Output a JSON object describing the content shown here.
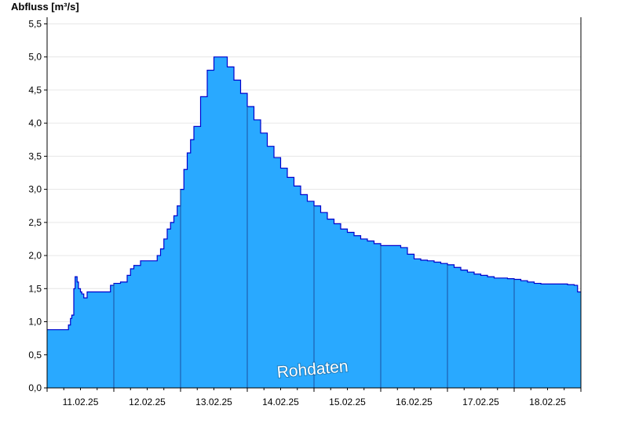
{
  "chart_data": {
    "type": "area",
    "ylabel": "Abfluss [m³/s]",
    "ylim": [
      0,
      5.6
    ],
    "yticks": [
      0,
      0.5,
      1.0,
      1.5,
      2.0,
      2.5,
      3.0,
      3.5,
      4.0,
      4.5,
      5.0,
      5.5
    ],
    "ytick_labels": [
      "0,0",
      "0,5",
      "1,0",
      "1,5",
      "2,0",
      "2,5",
      "3,0",
      "3,5",
      "4,0",
      "4,5",
      "5,0",
      "5,5"
    ],
    "xlim": [
      0,
      8
    ],
    "x_unit": "days from 11.02.25 00:00",
    "xtick_labels": [
      "11.02.25",
      "12.02.25",
      "13.02.25",
      "14.02.25",
      "15.02.25",
      "16.02.25",
      "17.02.25",
      "18.02.25"
    ],
    "grid": true,
    "annotation": "Rohdaten",
    "colors": {
      "fill": "#29a9ff",
      "line": "#0000cc",
      "grid": "#e6e6e6",
      "axis": "#000000"
    },
    "series": [
      {
        "x": [
          0,
          0.3,
          0.32,
          0.35,
          0.37,
          0.4,
          0.42,
          0.45,
          0.47,
          0.5,
          0.52,
          0.55,
          0.6,
          0.65,
          0.7,
          0.8,
          0.95,
          1.0,
          1.1,
          1.2,
          1.25,
          1.3,
          1.4,
          1.5,
          1.6,
          1.65,
          1.7,
          1.75,
          1.8,
          1.85,
          1.9,
          1.95,
          2.0,
          2.05,
          2.1,
          2.15,
          2.2,
          2.3,
          2.4,
          2.5,
          2.6,
          2.7,
          2.8,
          2.9,
          3.0,
          3.1,
          3.2,
          3.3,
          3.4,
          3.5,
          3.6,
          3.7,
          3.8,
          3.9,
          4.0,
          4.1,
          4.2,
          4.3,
          4.4,
          4.5,
          4.6,
          4.7,
          4.8,
          4.9,
          5.0,
          5.1,
          5.2,
          5.3,
          5.4,
          5.5,
          5.6,
          5.7,
          5.8,
          5.9,
          6.0,
          6.1,
          6.2,
          6.3,
          6.4,
          6.5,
          6.6,
          6.7,
          6.8,
          6.9,
          7.0,
          7.1,
          7.2,
          7.3,
          7.4,
          7.5,
          7.6,
          7.7,
          7.8,
          7.9,
          7.95,
          8.0
        ],
        "y": [
          0.88,
          0.88,
          0.95,
          1.05,
          1.1,
          1.5,
          1.68,
          1.6,
          1.5,
          1.45,
          1.42,
          1.36,
          1.45,
          1.45,
          1.45,
          1.45,
          1.55,
          1.58,
          1.6,
          1.7,
          1.8,
          1.85,
          1.92,
          1.92,
          1.92,
          2.0,
          2.1,
          2.25,
          2.4,
          2.5,
          2.6,
          2.75,
          3.0,
          3.3,
          3.55,
          3.75,
          3.95,
          4.4,
          4.8,
          5.0,
          5.0,
          4.85,
          4.65,
          4.45,
          4.25,
          4.05,
          3.85,
          3.65,
          3.48,
          3.32,
          3.18,
          3.05,
          2.92,
          2.82,
          2.75,
          2.65,
          2.55,
          2.48,
          2.4,
          2.35,
          2.3,
          2.25,
          2.22,
          2.18,
          2.15,
          2.15,
          2.15,
          2.12,
          2.02,
          1.95,
          1.93,
          1.92,
          1.9,
          1.88,
          1.86,
          1.82,
          1.78,
          1.75,
          1.72,
          1.7,
          1.68,
          1.66,
          1.66,
          1.65,
          1.64,
          1.62,
          1.6,
          1.58,
          1.57,
          1.57,
          1.57,
          1.57,
          1.56,
          1.55,
          1.45,
          1.45
        ]
      }
    ]
  }
}
